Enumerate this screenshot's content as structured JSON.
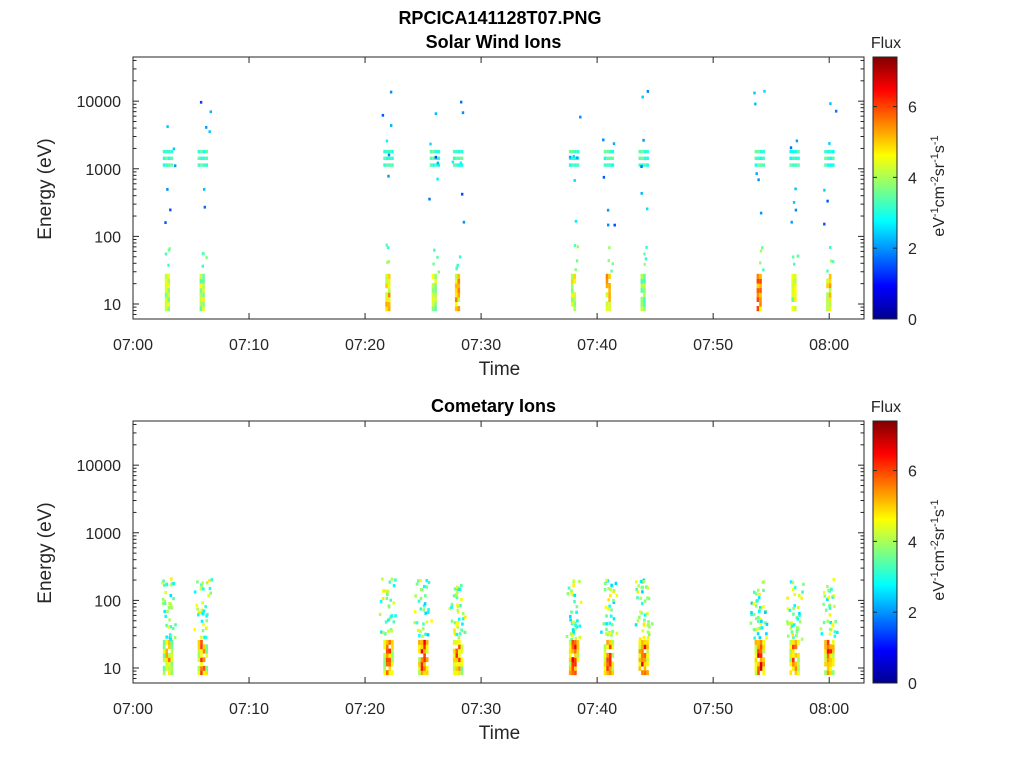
{
  "figure": {
    "suptitle": "RPCICA141128T07.PNG"
  },
  "colorbar": {
    "title": "Flux",
    "ylabel_parts": [
      "eV",
      "-1",
      "cm",
      "-2",
      "sr",
      "-1",
      "s",
      "-1"
    ],
    "ticks": [
      "0",
      "2",
      "4",
      "6"
    ],
    "range": [
      0,
      7.4
    ],
    "colormap": "jet",
    "colors": [
      "#00008f",
      "#0000ff",
      "#0080ff",
      "#00ffff",
      "#80ff80",
      "#ffff00",
      "#ff8000",
      "#ff0000",
      "#800000"
    ]
  },
  "chart_data": [
    {
      "type": "heatmap",
      "title": "Solar Wind Ions",
      "xlabel": "Time",
      "ylabel": "Energy (eV)",
      "yscale": "log",
      "xlim": [
        "07:00",
        "08:03"
      ],
      "ylim": [
        6,
        45000
      ],
      "xticks": [
        "07:00",
        "07:10",
        "07:20",
        "07:30",
        "07:40",
        "07:50",
        "08:00"
      ],
      "yticks": [
        "10",
        "100",
        "1000",
        "10000"
      ],
      "grid": false,
      "bursts": [
        {
          "t": "07:03",
          "peak_flux": 5.5
        },
        {
          "t": "07:06",
          "peak_flux": 5.5
        },
        {
          "t": "07:22",
          "peak_flux": 6.5
        },
        {
          "t": "07:26",
          "peak_flux": 5.5
        },
        {
          "t": "07:28",
          "peak_flux": 6.5
        },
        {
          "t": "07:38",
          "peak_flux": 6.0
        },
        {
          "t": "07:41",
          "peak_flux": 6.5
        },
        {
          "t": "07:44",
          "peak_flux": 5.0
        },
        {
          "t": "07:54",
          "peak_flux": 7.0
        },
        {
          "t": "07:57",
          "peak_flux": 5.5
        },
        {
          "t": "08:00",
          "peak_flux": 6.5
        }
      ]
    },
    {
      "type": "heatmap",
      "title": "Cometary Ions",
      "xlabel": "Time",
      "ylabel": "Energy (eV)",
      "yscale": "log",
      "xlim": [
        "07:00",
        "08:03"
      ],
      "ylim": [
        6,
        45000
      ],
      "xticks": [
        "07:00",
        "07:10",
        "07:20",
        "07:30",
        "07:40",
        "07:50",
        "08:00"
      ],
      "yticks": [
        "10",
        "100",
        "1000",
        "10000"
      ],
      "grid": false,
      "bursts": [
        {
          "t": "07:03",
          "peak_flux": 6.0
        },
        {
          "t": "07:06",
          "peak_flux": 6.5
        },
        {
          "t": "07:22",
          "peak_flux": 6.5
        },
        {
          "t": "07:25",
          "peak_flux": 7.0
        },
        {
          "t": "07:28",
          "peak_flux": 6.5
        },
        {
          "t": "07:38",
          "peak_flux": 7.0
        },
        {
          "t": "07:41",
          "peak_flux": 6.5
        },
        {
          "t": "07:44",
          "peak_flux": 7.0
        },
        {
          "t": "07:54",
          "peak_flux": 7.2
        },
        {
          "t": "07:57",
          "peak_flux": 6.5
        },
        {
          "t": "08:00",
          "peak_flux": 6.8
        }
      ]
    }
  ]
}
